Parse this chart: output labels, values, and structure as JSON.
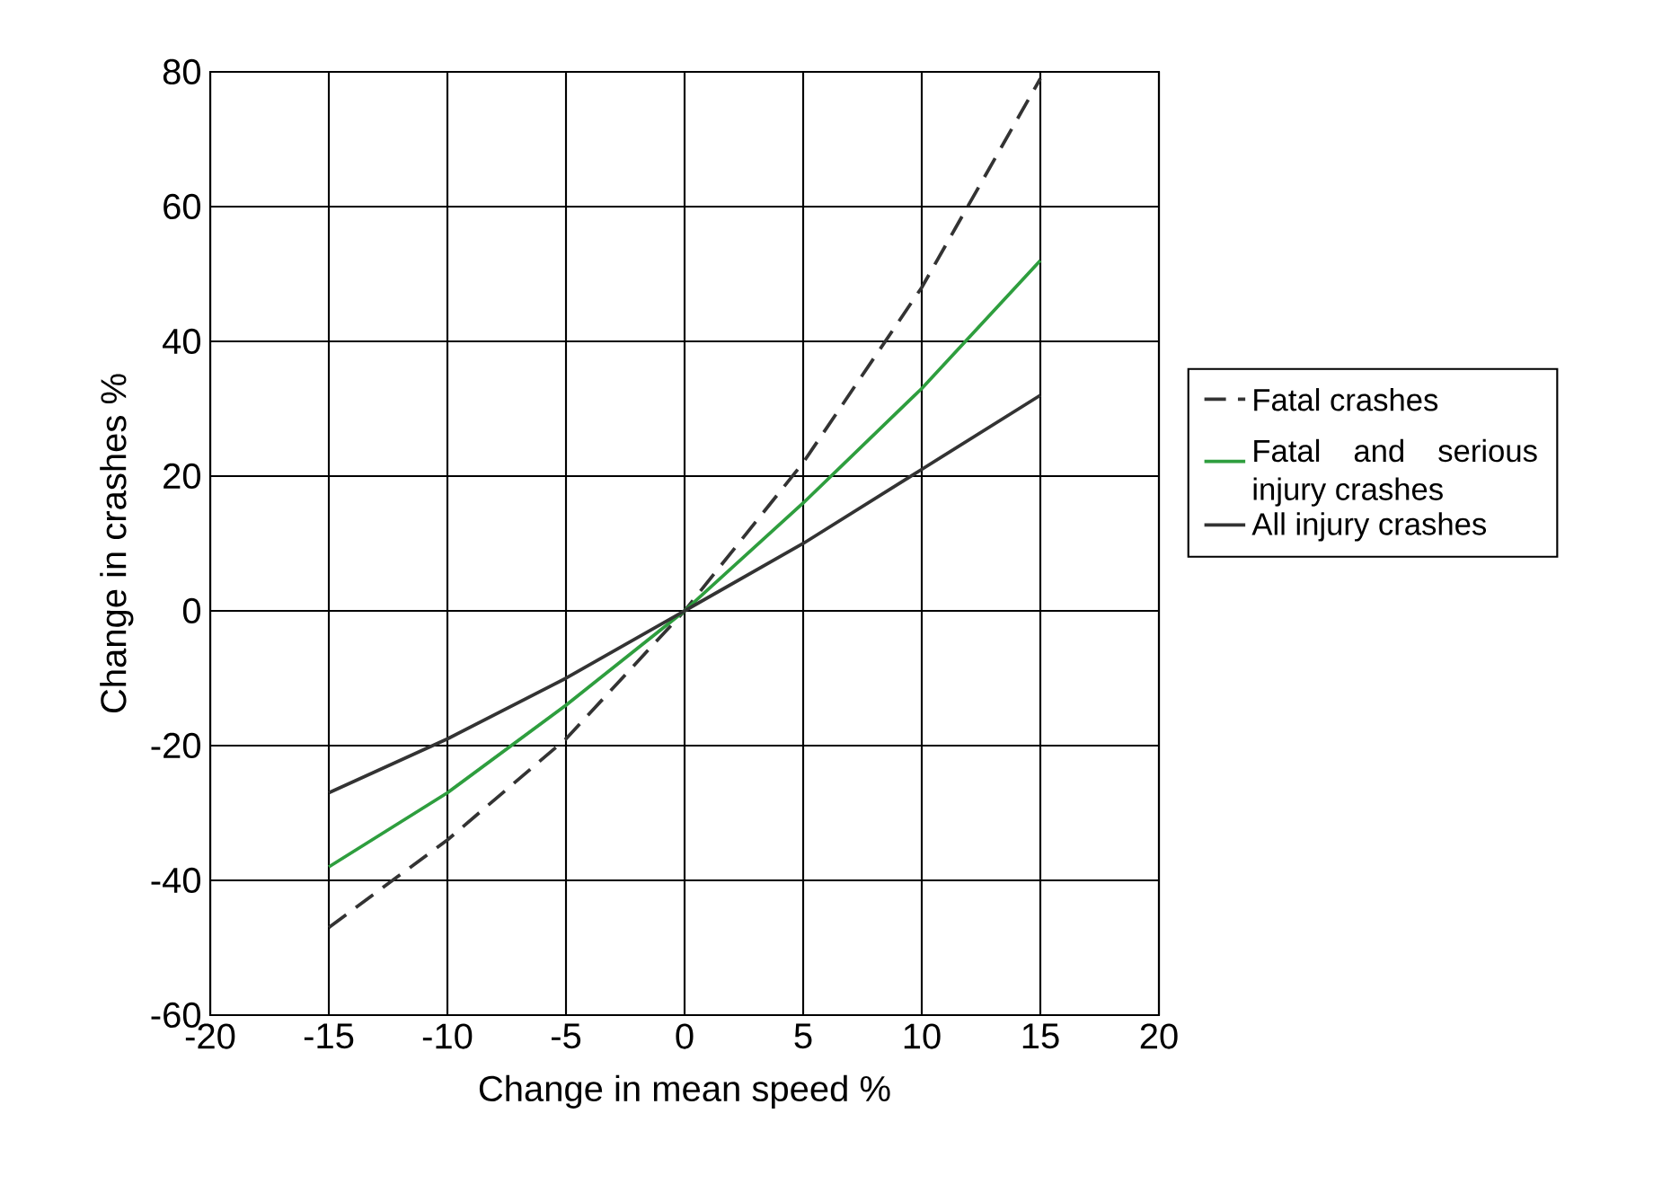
{
  "chart_data": {
    "type": "line",
    "xlabel": "Change in mean speed %",
    "ylabel": "Change in crashes %",
    "x": [
      -15,
      -10,
      -5,
      0,
      5,
      10,
      15
    ],
    "series": [
      {
        "name": "Fatal crashes",
        "color": "#333333",
        "line_style": "dashed",
        "values": [
          -47,
          -34,
          -19,
          0,
          22,
          48,
          79
        ]
      },
      {
        "name": "Fatal and serious injury crashes",
        "color": "#2e9e3e",
        "values": [
          -38,
          -27,
          -14,
          0,
          16,
          33,
          52
        ]
      },
      {
        "name": "All injury crashes",
        "color": "#333333",
        "values": [
          -27,
          -19,
          -10,
          0,
          10,
          21,
          32
        ]
      }
    ],
    "xlim": [
      -20,
      20
    ],
    "xticks": [
      -20,
      -15,
      -10,
      -5,
      0,
      5,
      10,
      15,
      20
    ],
    "ylim": [
      -60,
      80
    ],
    "yticks": [
      -60,
      -40,
      -20,
      0,
      20,
      40,
      60,
      80
    ],
    "grid": true,
    "legend": "right"
  }
}
